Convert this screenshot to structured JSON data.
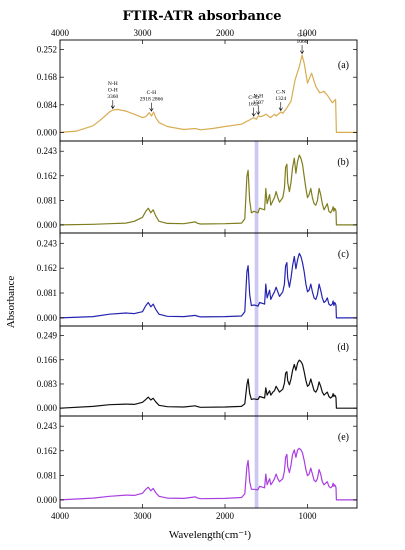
{
  "chart_data": {
    "type": "line",
    "title": "FTIR-ATR absorbance",
    "xlabel": "Wavelength(cm⁻¹)",
    "ylabel": "Absorbance",
    "xlim": [
      4000,
      400
    ],
    "x_ticks": [
      4000,
      3000,
      2000,
      1000
    ],
    "highlight_band": {
      "x_range": [
        1640,
        1595
      ],
      "color": "#b9b6ec"
    },
    "panels": [
      {
        "label": "(a)",
        "color": "#d9ac52",
        "ylim": [
          -0.02,
          0.275
        ],
        "y_ticks": [
          "0.000",
          "0.084",
          "0.168",
          "0.252"
        ],
        "x": [
          4000,
          3800,
          3600,
          3500,
          3400,
          3360,
          3300,
          3200,
          3100,
          3000,
          2960,
          2918,
          2890,
          2866,
          2840,
          2800,
          2700,
          2500,
          2360,
          2300,
          2150,
          2000,
          1800,
          1700,
          1652,
          1620,
          1597,
          1560,
          1500,
          1450,
          1400,
          1380,
          1324,
          1300,
          1250,
          1200,
          1150,
          1100,
          1080,
          1066,
          1040,
          1000,
          950,
          900,
          850,
          800,
          750,
          700,
          660,
          650,
          600,
          400
        ],
        "y": [
          0.0,
          0.004,
          0.02,
          0.04,
          0.062,
          0.068,
          0.07,
          0.065,
          0.055,
          0.045,
          0.048,
          0.06,
          0.05,
          0.062,
          0.045,
          0.03,
          0.018,
          0.009,
          0.012,
          0.008,
          0.012,
          0.018,
          0.025,
          0.038,
          0.045,
          0.04,
          0.05,
          0.048,
          0.055,
          0.045,
          0.055,
          0.05,
          0.062,
          0.058,
          0.075,
          0.095,
          0.16,
          0.2,
          0.22,
          0.235,
          0.21,
          0.15,
          0.18,
          0.14,
          0.12,
          0.125,
          0.11,
          0.09,
          0.1,
          0.0,
          0.0,
          0.0
        ],
        "annotations": [
          {
            "lines": [
              "N-H",
              "O-H",
              "3360"
            ],
            "x": 3360,
            "y": 0.068
          },
          {
            "lines": [
              "C-H",
              "2918  2866"
            ],
            "x": 2892,
            "y": 0.06
          },
          {
            "lines": [
              "C=O",
              "1652"
            ],
            "x": 1652,
            "y": 0.045
          },
          {
            "lines": [
              "N-H",
              "1597"
            ],
            "x": 1597,
            "y": 0.05
          },
          {
            "lines": [
              "C-N",
              "1324"
            ],
            "x": 1324,
            "y": 0.062
          },
          {
            "lines": [
              "C-O",
              "1066"
            ],
            "x": 1066,
            "y": 0.235
          }
        ]
      },
      {
        "label": "(b)",
        "color": "#7f7d1e",
        "ylim": [
          -0.02,
          0.27
        ],
        "y_ticks": [
          "0.000",
          "0.081",
          "0.162",
          "0.243"
        ],
        "x": [
          4000,
          3600,
          3400,
          3200,
          3100,
          3000,
          2960,
          2930,
          2900,
          2870,
          2840,
          2800,
          2700,
          2500,
          2360,
          2340,
          2300,
          2000,
          1800,
          1760,
          1735,
          1720,
          1700,
          1680,
          1650,
          1620,
          1600,
          1580,
          1520,
          1505,
          1490,
          1460,
          1445,
          1420,
          1400,
          1380,
          1360,
          1340,
          1300,
          1280,
          1265,
          1250,
          1240,
          1220,
          1200,
          1180,
          1160,
          1140,
          1120,
          1100,
          1080,
          1060,
          1040,
          1020,
          1000,
          980,
          960,
          940,
          920,
          900,
          880,
          860,
          840,
          820,
          800,
          780,
          760,
          740,
          720,
          700,
          690,
          680,
          670,
          660,
          655,
          650,
          640,
          400
        ],
        "y": [
          0.0,
          0.002,
          0.004,
          0.006,
          0.012,
          0.025,
          0.045,
          0.055,
          0.04,
          0.05,
          0.03,
          0.012,
          0.005,
          0.004,
          0.01,
          0.006,
          0.003,
          0.004,
          0.006,
          0.02,
          0.16,
          0.18,
          0.08,
          0.04,
          0.045,
          0.042,
          0.04,
          0.055,
          0.05,
          0.12,
          0.07,
          0.1,
          0.065,
          0.08,
          0.09,
          0.11,
          0.09,
          0.075,
          0.09,
          0.12,
          0.19,
          0.2,
          0.14,
          0.11,
          0.14,
          0.19,
          0.22,
          0.17,
          0.21,
          0.23,
          0.22,
          0.2,
          0.16,
          0.12,
          0.09,
          0.1,
          0.12,
          0.09,
          0.07,
          0.065,
          0.08,
          0.12,
          0.1,
          0.07,
          0.05,
          0.06,
          0.07,
          0.045,
          0.04,
          0.05,
          0.06,
          0.045,
          0.055,
          0.05,
          0.045,
          0.0,
          0.0,
          0.0
        ]
      },
      {
        "label": "(c)",
        "color": "#2424b0",
        "ylim": [
          -0.02,
          0.27
        ],
        "y_ticks": [
          "0.000",
          "0.081",
          "0.162",
          "0.243"
        ],
        "x": [
          4000,
          3600,
          3400,
          3200,
          3100,
          3000,
          2960,
          2930,
          2900,
          2870,
          2840,
          2800,
          2700,
          2500,
          2360,
          2340,
          2300,
          2000,
          1800,
          1760,
          1735,
          1720,
          1700,
          1680,
          1650,
          1620,
          1600,
          1580,
          1520,
          1505,
          1490,
          1460,
          1445,
          1420,
          1400,
          1380,
          1360,
          1340,
          1300,
          1280,
          1265,
          1250,
          1240,
          1220,
          1200,
          1180,
          1160,
          1140,
          1120,
          1100,
          1080,
          1060,
          1040,
          1020,
          1000,
          980,
          960,
          940,
          920,
          900,
          880,
          860,
          840,
          820,
          800,
          780,
          760,
          740,
          720,
          700,
          690,
          680,
          670,
          660,
          655,
          650,
          640,
          400
        ],
        "y": [
          0.0,
          0.004,
          0.012,
          0.016,
          0.014,
          0.02,
          0.04,
          0.05,
          0.036,
          0.045,
          0.028,
          0.012,
          0.005,
          0.004,
          0.008,
          0.006,
          0.003,
          0.004,
          0.006,
          0.02,
          0.15,
          0.17,
          0.075,
          0.04,
          0.042,
          0.04,
          0.038,
          0.05,
          0.045,
          0.11,
          0.065,
          0.09,
          0.06,
          0.075,
          0.085,
          0.1,
          0.085,
          0.07,
          0.085,
          0.11,
          0.17,
          0.18,
          0.13,
          0.1,
          0.13,
          0.17,
          0.2,
          0.16,
          0.19,
          0.21,
          0.2,
          0.18,
          0.15,
          0.11,
          0.085,
          0.09,
          0.11,
          0.085,
          0.065,
          0.06,
          0.075,
          0.11,
          0.09,
          0.065,
          0.05,
          0.055,
          0.065,
          0.045,
          0.04,
          0.045,
          0.055,
          0.04,
          0.05,
          0.045,
          0.04,
          0.0,
          0.0,
          0.0
        ]
      },
      {
        "label": "(d)",
        "color": "#111111",
        "ylim": [
          -0.02,
          0.275
        ],
        "y_ticks": [
          "0.000",
          "0.083",
          "0.166",
          "0.249"
        ],
        "x": [
          4000,
          3600,
          3400,
          3200,
          3100,
          3000,
          2960,
          2930,
          2900,
          2870,
          2840,
          2800,
          2700,
          2500,
          2360,
          2340,
          2300,
          2000,
          1800,
          1760,
          1735,
          1720,
          1700,
          1680,
          1650,
          1620,
          1600,
          1580,
          1520,
          1505,
          1490,
          1460,
          1445,
          1420,
          1400,
          1380,
          1360,
          1340,
          1300,
          1280,
          1265,
          1250,
          1240,
          1220,
          1200,
          1180,
          1160,
          1140,
          1120,
          1100,
          1080,
          1060,
          1040,
          1020,
          1000,
          980,
          960,
          940,
          920,
          900,
          880,
          860,
          840,
          820,
          800,
          780,
          760,
          740,
          720,
          700,
          690,
          680,
          670,
          660,
          655,
          650,
          640,
          400
        ],
        "y": [
          0.0,
          0.006,
          0.012,
          0.014,
          0.013,
          0.02,
          0.03,
          0.038,
          0.028,
          0.034,
          0.022,
          0.01,
          0.005,
          0.004,
          0.008,
          0.006,
          0.003,
          0.004,
          0.006,
          0.015,
          0.08,
          0.1,
          0.05,
          0.03,
          0.032,
          0.03,
          0.03,
          0.04,
          0.035,
          0.07,
          0.045,
          0.06,
          0.045,
          0.055,
          0.06,
          0.075,
          0.065,
          0.055,
          0.065,
          0.085,
          0.12,
          0.125,
          0.095,
          0.08,
          0.1,
          0.13,
          0.15,
          0.13,
          0.155,
          0.165,
          0.16,
          0.15,
          0.125,
          0.095,
          0.075,
          0.08,
          0.1,
          0.08,
          0.06,
          0.055,
          0.065,
          0.09,
          0.075,
          0.055,
          0.045,
          0.05,
          0.055,
          0.04,
          0.035,
          0.04,
          0.05,
          0.04,
          0.045,
          0.04,
          0.035,
          0.0,
          0.0,
          0.0
        ]
      },
      {
        "label": "(e)",
        "color": "#a93ee0",
        "ylim": [
          -0.02,
          0.27
        ],
        "y_ticks": [
          "0.000",
          "0.081",
          "0.162",
          "0.243"
        ],
        "x": [
          4000,
          3600,
          3400,
          3200,
          3100,
          3000,
          2960,
          2930,
          2900,
          2870,
          2840,
          2800,
          2700,
          2500,
          2360,
          2340,
          2300,
          2000,
          1800,
          1760,
          1735,
          1720,
          1700,
          1680,
          1650,
          1620,
          1600,
          1580,
          1520,
          1505,
          1490,
          1460,
          1445,
          1420,
          1400,
          1380,
          1360,
          1340,
          1300,
          1280,
          1265,
          1250,
          1240,
          1220,
          1200,
          1180,
          1160,
          1140,
          1120,
          1100,
          1080,
          1060,
          1040,
          1020,
          1000,
          980,
          960,
          940,
          920,
          900,
          880,
          860,
          840,
          820,
          800,
          780,
          760,
          740,
          720,
          700,
          690,
          680,
          670,
          660,
          655,
          650,
          640,
          400
        ],
        "y": [
          0.0,
          0.006,
          0.012,
          0.016,
          0.015,
          0.022,
          0.035,
          0.042,
          0.03,
          0.038,
          0.024,
          0.012,
          0.006,
          0.005,
          0.01,
          0.007,
          0.004,
          0.005,
          0.008,
          0.02,
          0.11,
          0.13,
          0.06,
          0.035,
          0.035,
          0.034,
          0.034,
          0.045,
          0.04,
          0.085,
          0.05,
          0.07,
          0.05,
          0.06,
          0.07,
          0.085,
          0.07,
          0.06,
          0.07,
          0.095,
          0.14,
          0.15,
          0.11,
          0.09,
          0.115,
          0.15,
          0.165,
          0.14,
          0.165,
          0.17,
          0.165,
          0.155,
          0.13,
          0.1,
          0.08,
          0.085,
          0.105,
          0.085,
          0.065,
          0.06,
          0.07,
          0.1,
          0.085,
          0.06,
          0.05,
          0.055,
          0.06,
          0.045,
          0.04,
          0.045,
          0.055,
          0.045,
          0.05,
          0.045,
          0.04,
          0.0,
          0.0,
          0.0
        ]
      }
    ]
  }
}
